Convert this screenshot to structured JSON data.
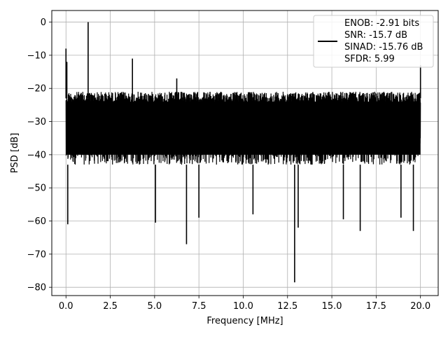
{
  "chart_data": {
    "type": "line",
    "title": "",
    "xlabel": "Frequency [MHz]",
    "ylabel": "PSD [dB]",
    "xlim": [
      -0.8,
      21.0
    ],
    "ylim": [
      -82.5,
      3.5
    ],
    "grid": true,
    "legend_position": "top-right",
    "x_ticks": [
      0.0,
      2.5,
      5.0,
      7.5,
      10.0,
      12.5,
      15.0,
      17.5,
      20.0
    ],
    "x_tick_labels": [
      "0.0",
      "2.5",
      "5.0",
      "7.5",
      "10.0",
      "12.5",
      "15.0",
      "17.5",
      "20.0"
    ],
    "y_ticks": [
      0,
      -10,
      -20,
      -30,
      -40,
      -50,
      -60,
      -70,
      -80
    ],
    "y_tick_labels": [
      "0",
      "−10",
      "−20",
      "−30",
      "−40",
      "−50",
      "−60",
      "−70",
      "−80"
    ],
    "legend": {
      "lines": [
        "ENOB: -2.91 bits",
        "SNR: -15.7 dB",
        "SINAD: -15.76 dB",
        "SFDR: 5.99"
      ],
      "line_color": "#000000"
    },
    "series": [
      {
        "color": "#000000",
        "noise_band": {
          "x_start": 0.0,
          "x_end": 20.0,
          "upper_db": -21,
          "lower_db": -43
        },
        "peaks": [
          {
            "x": 0.0,
            "y": -8
          },
          {
            "x": 0.05,
            "y": -12
          },
          {
            "x": 1.25,
            "y": 0
          },
          {
            "x": 3.75,
            "y": -11
          },
          {
            "x": 6.25,
            "y": -17
          },
          {
            "x": 20.0,
            "y": -13
          }
        ],
        "dips": [
          {
            "x": 0.1,
            "y": -61
          },
          {
            "x": 6.8,
            "y": -67
          },
          {
            "x": 12.9,
            "y": -78.5
          },
          {
            "x": 13.1,
            "y": -62
          },
          {
            "x": 16.6,
            "y": -63
          },
          {
            "x": 19.6,
            "y": -63
          },
          {
            "x": 5.05,
            "y": -60.5
          },
          {
            "x": 7.5,
            "y": -59
          },
          {
            "x": 10.55,
            "y": -58
          },
          {
            "x": 15.65,
            "y": -59.5
          },
          {
            "x": 18.9,
            "y": -59
          }
        ]
      }
    ]
  }
}
